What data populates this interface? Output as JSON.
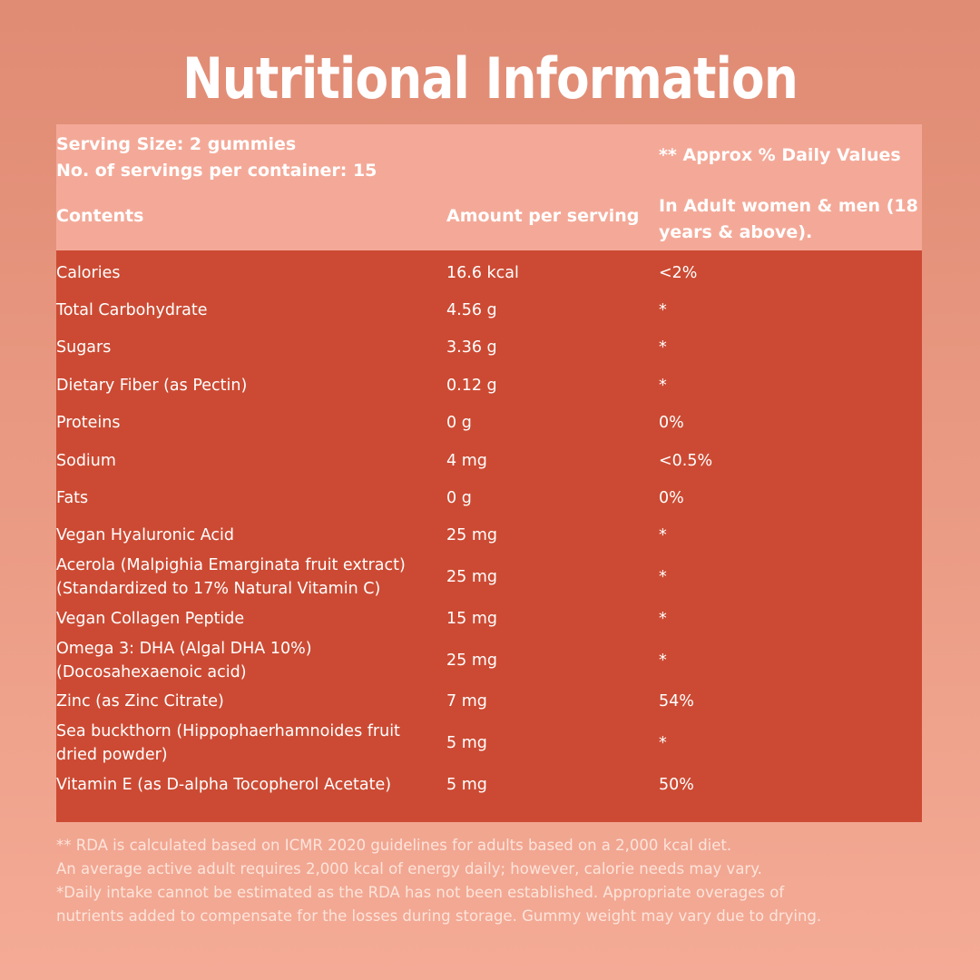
{
  "title": "Nutritional Information",
  "header": {
    "serving_size": "Serving Size: 2 gummies",
    "servings_per_container": "No. of servings per container: 15",
    "approx_daily": "** Approx % Daily Values",
    "col_contents": "Contents",
    "col_amount": "Amount per serving",
    "col_adult_line1": "In Adult women & men (18",
    "col_adult_line2": "years & above)."
  },
  "rows": [
    {
      "lines": [
        "Calories"
      ],
      "amount": "16.6 kcal",
      "dv": "<2%"
    },
    {
      "lines": [
        "Total Carbohydrate"
      ],
      "amount": "4.56 g",
      "dv": "*"
    },
    {
      "lines": [
        "Sugars"
      ],
      "amount": "3.36 g",
      "dv": "*"
    },
    {
      "lines": [
        "Dietary Fiber (as Pectin)"
      ],
      "amount": "0.12 g",
      "dv": "*"
    },
    {
      "lines": [
        "Proteins"
      ],
      "amount": "0 g",
      "dv": "0%"
    },
    {
      "lines": [
        "Sodium"
      ],
      "amount": "4 mg",
      "dv": "<0.5%"
    },
    {
      "lines": [
        "Fats"
      ],
      "amount": "0 g",
      "dv": "0%"
    },
    {
      "lines": [
        "Vegan Hyaluronic Acid"
      ],
      "amount": "25 mg",
      "dv": "*"
    },
    {
      "lines": [
        "Acerola (Malpighia Emarginata fruit extract)",
        "(Standardized to 17% Natural Vitamin C)"
      ],
      "amount": "25 mg",
      "dv": "*"
    },
    {
      "lines": [
        "Vegan Collagen Peptide"
      ],
      "amount": "15 mg",
      "dv": "*"
    },
    {
      "lines": [
        "Omega 3: DHA (Algal DHA 10%)",
        "(Docosahexaenoic acid)"
      ],
      "amount": "25 mg",
      "dv": "*"
    },
    {
      "lines": [
        "Zinc (as Zinc Citrate)"
      ],
      "amount": "7 mg",
      "dv": "54%"
    },
    {
      "lines": [
        "Sea buckthorn (Hippophaerhamnoides fruit",
        "dried powder)"
      ],
      "amount": "5 mg",
      "dv": "*"
    },
    {
      "lines": [
        "Vitamin E (as D-alpha Tocopherol Acetate)"
      ],
      "amount": "5 mg",
      "dv": "50%"
    }
  ],
  "notes": [
    "** RDA is calculated based on ICMR 2020 guidelines for adults based on a 2,000 kcal diet.",
    "An average active adult requires 2,000 kcal of energy daily; however, calorie needs may vary.",
    "*Daily intake cannot be estimated as the RDA has not been established. Appropriate overages of",
    "nutrients added to compensate for the losses during storage. Gummy weight may vary due to drying."
  ],
  "colors": {
    "header_band": "#f4a998",
    "table_body": "#cc4a33",
    "background_top": "#e08b74",
    "background_bottom": "#f4ab96"
  }
}
